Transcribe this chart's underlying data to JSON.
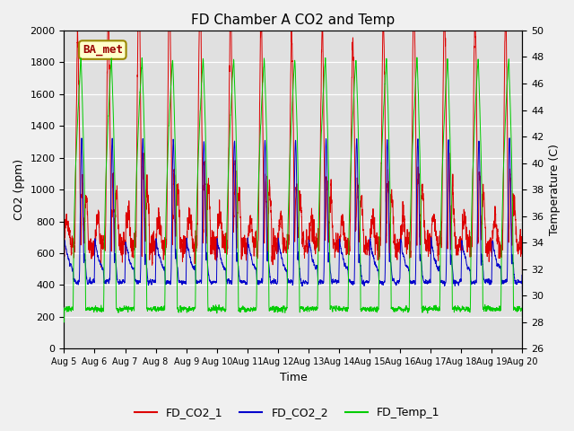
{
  "title": "FD Chamber A CO2 and Temp",
  "xlabel": "Time",
  "ylabel_left": "CO2 (ppm)",
  "ylabel_right": "Temperature (C)",
  "ylim_left": [
    0,
    2000
  ],
  "ylim_right": [
    26,
    50
  ],
  "yticks_left": [
    0,
    200,
    400,
    600,
    800,
    1000,
    1200,
    1400,
    1600,
    1800,
    2000
  ],
  "yticks_right": [
    26,
    28,
    30,
    32,
    34,
    36,
    38,
    40,
    42,
    44,
    46,
    48,
    50
  ],
  "xtick_labels": [
    "Aug 5",
    "Aug 6",
    "Aug 7",
    "Aug 8",
    "Aug 9",
    "Aug 10",
    "Aug 11",
    "Aug 12",
    "Aug 13",
    "Aug 14",
    "Aug 15",
    "Aug 16",
    "Aug 17",
    "Aug 18",
    "Aug 19",
    "Aug 20"
  ],
  "color_co2_1": "#dd0000",
  "color_co2_2": "#0000cc",
  "color_temp": "#00cc00",
  "legend_label_1": "FD_CO2_1",
  "legend_label_2": "FD_CO2_2",
  "legend_label_3": "FD_Temp_1",
  "annotation_text": "BA_met",
  "bg_plot": "#e0e0e0",
  "bg_fig": "#f0f0f0",
  "grid_color": "#ffffff",
  "n_days": 15,
  "ppd": 288
}
